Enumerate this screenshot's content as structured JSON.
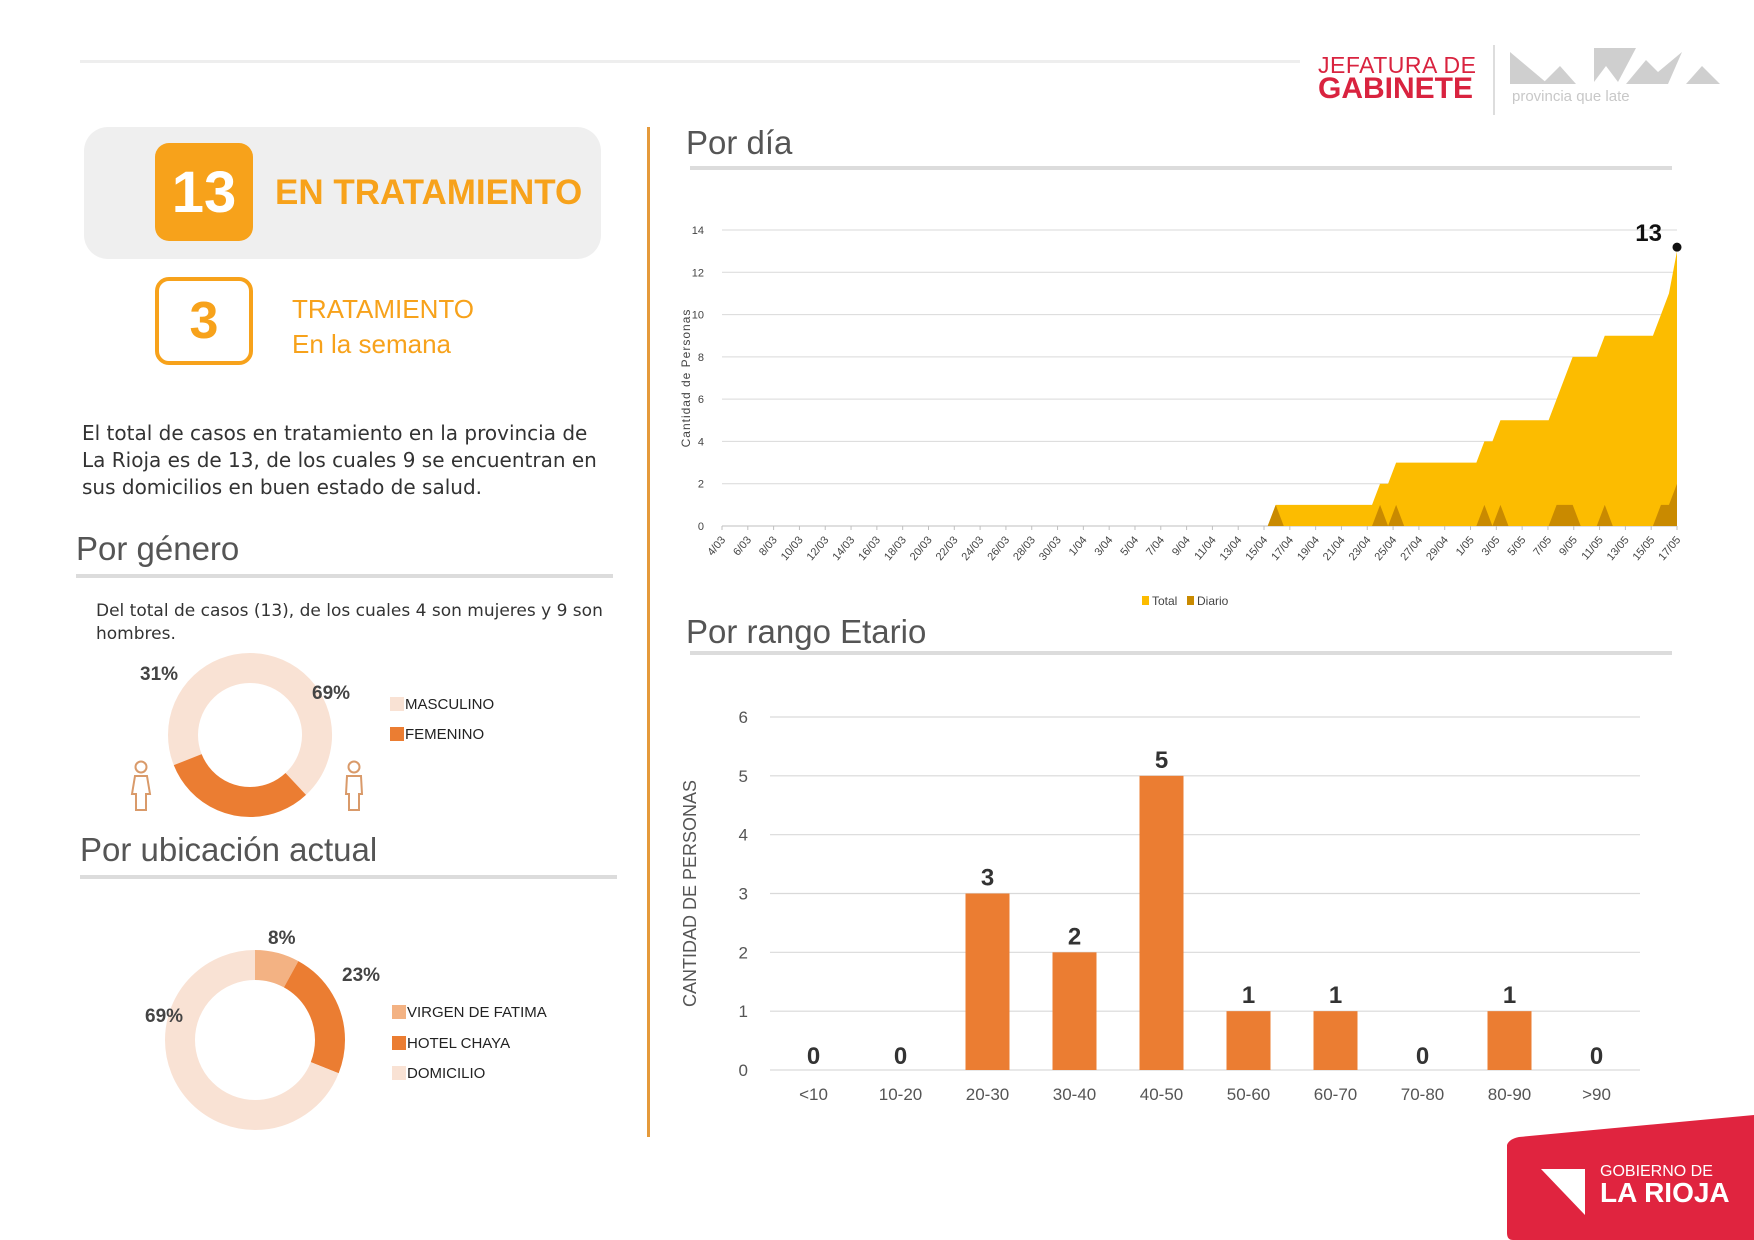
{
  "header": {
    "brand_line1": "JEFATURA DE",
    "brand_line2": "GABINETE",
    "rioja_tagline": "provincia que late"
  },
  "kpi": {
    "en_tratamiento_value": "13",
    "en_tratamiento_label": "EN TRATAMIENTO",
    "semana_value": "3",
    "semana_label_line1": "TRATAMIENTO",
    "semana_label_line2": "En la semana"
  },
  "summary_text_lines": [
    "El total de casos en tratamiento  en la provincia de",
    "La Rioja es de 13, de los cuales 9 se encuentran en",
    "sus domicilios en buen estado de salud."
  ],
  "genero": {
    "title": "Por género",
    "text": "Del total de casos (13), de los cuales 4 son mujeres y 9 son hombres.",
    "pct_femenino": "31%",
    "pct_masculino": "69%",
    "legend": [
      "MASCULINO",
      "FEMENINO"
    ]
  },
  "ubicacion": {
    "title": "Por ubicación actual",
    "pct_virgen": "8%",
    "pct_hotel": "23%",
    "pct_domicilio": "69%",
    "legend": [
      "VIRGEN DE FATIMA",
      "HOTEL CHAYA",
      "DOMICILIO"
    ]
  },
  "por_dia": {
    "title": "Por día"
  },
  "por_rango": {
    "title": "Por rango Etario"
  },
  "footer": {
    "line1": "GOBIERNO DE",
    "line2": "LA RIOJA"
  },
  "colors": {
    "orange": "#f7a21b",
    "bar_orange": "#eb7d32",
    "total_area": "#fcbc00",
    "diario_area": "#c98a00",
    "light_peach": "#f9e2d4",
    "mid_peach": "#f3b283",
    "red": "#d9233f"
  },
  "chart_data": [
    {
      "type": "area",
      "ylabel": "Cantidad de Personas",
      "ylim": [
        0,
        14
      ],
      "yticks": [
        0,
        2,
        4,
        6,
        8,
        10,
        12,
        14
      ],
      "x_tick_labels": [
        "4/03",
        "6/03",
        "8/03",
        "10/03",
        "12/03",
        "14/03",
        "16/03",
        "18/03",
        "20/03",
        "22/03",
        "24/03",
        "26/03",
        "28/03",
        "30/03",
        "1/04",
        "3/04",
        "5/04",
        "7/04",
        "9/04",
        "11/04",
        "13/04",
        "15/04",
        "17/04",
        "19/04",
        "21/04",
        "23/04",
        "25/04",
        "27/04",
        "29/04",
        "1/05",
        "3/05",
        "5/05",
        "7/05",
        "9/05",
        "11/05",
        "13/05",
        "15/05",
        "17/05"
      ],
      "annotation": "13",
      "legend": [
        "Total",
        "Diario"
      ],
      "series": [
        {
          "name": "Total",
          "values": [
            0,
            0,
            0,
            0,
            0,
            0,
            0,
            0,
            0,
            0,
            0,
            0,
            0,
            0,
            0,
            0,
            0,
            0,
            0,
            0,
            0,
            0,
            0,
            0,
            0,
            0,
            0,
            0,
            0,
            0,
            0,
            0,
            0,
            0,
            0,
            0,
            0,
            0,
            0,
            0,
            0,
            0,
            0,
            0,
            0,
            0,
            0,
            0,
            0,
            0,
            0,
            0,
            0,
            0,
            0,
            0,
            0,
            0,
            0,
            0,
            0,
            0,
            0,
            0,
            0,
            0,
            0,
            0,
            0,
            1,
            1,
            1,
            1,
            1,
            1,
            1,
            1,
            1,
            1,
            1,
            1,
            1,
            2,
            2,
            3,
            3,
            3,
            3,
            3,
            3,
            3,
            3,
            3,
            3,
            3,
            4,
            4,
            5,
            5,
            5,
            5,
            5,
            5,
            5,
            6,
            7,
            8,
            8,
            8,
            8,
            9,
            9,
            9,
            9,
            9,
            9,
            9,
            10,
            11,
            13
          ]
        },
        {
          "name": "Diario",
          "values": [
            0,
            0,
            0,
            0,
            0,
            0,
            0,
            0,
            0,
            0,
            0,
            0,
            0,
            0,
            0,
            0,
            0,
            0,
            0,
            0,
            0,
            0,
            0,
            0,
            0,
            0,
            0,
            0,
            0,
            0,
            0,
            0,
            0,
            0,
            0,
            0,
            0,
            0,
            0,
            0,
            0,
            0,
            0,
            0,
            0,
            0,
            0,
            0,
            0,
            0,
            0,
            0,
            0,
            0,
            0,
            0,
            0,
            0,
            0,
            0,
            0,
            0,
            0,
            0,
            0,
            0,
            0,
            0,
            0,
            1,
            0,
            0,
            0,
            0,
            0,
            0,
            0,
            0,
            0,
            0,
            0,
            0,
            1,
            0,
            1,
            0,
            0,
            0,
            0,
            0,
            0,
            0,
            0,
            0,
            0,
            1,
            0,
            1,
            0,
            0,
            0,
            0,
            0,
            0,
            1,
            1,
            1,
            0,
            0,
            0,
            1,
            0,
            0,
            0,
            0,
            0,
            0,
            1,
            1,
            2
          ]
        }
      ]
    },
    {
      "type": "bar",
      "ylabel": "CANTIDAD DE PERSONAS",
      "ylim": [
        0,
        6
      ],
      "yticks": [
        0,
        1,
        2,
        3,
        4,
        5,
        6
      ],
      "categories": [
        "<10",
        "10-20",
        "20-30",
        "30-40",
        "40-50",
        "50-60",
        "60-70",
        "70-80",
        "80-90",
        ">90"
      ],
      "values": [
        0,
        0,
        3,
        2,
        5,
        1,
        1,
        0,
        1,
        0
      ]
    },
    {
      "type": "pie",
      "categories": [
        "MASCULINO",
        "FEMENINO"
      ],
      "values": [
        69,
        31
      ]
    },
    {
      "type": "pie",
      "categories": [
        "VIRGEN DE FATIMA",
        "HOTEL CHAYA",
        "DOMICILIO"
      ],
      "values": [
        8,
        23,
        69
      ]
    }
  ]
}
